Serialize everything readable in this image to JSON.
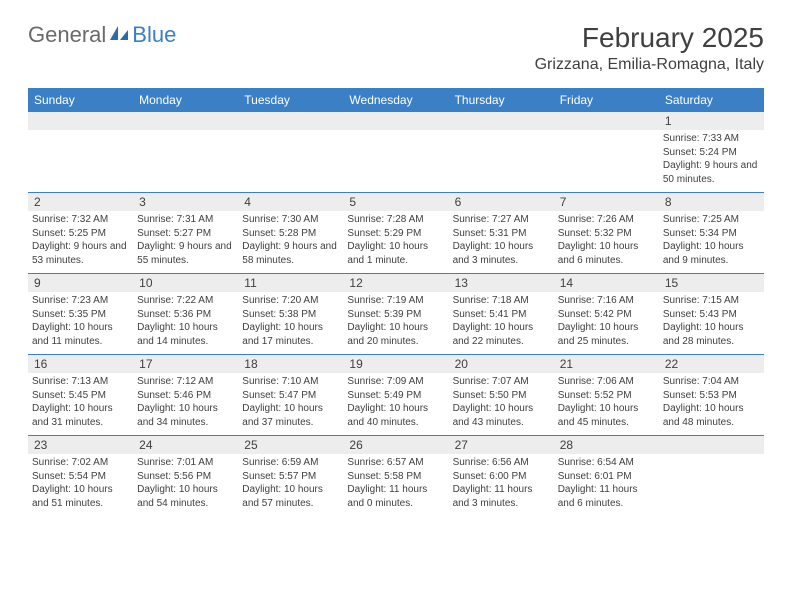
{
  "logo": {
    "text1": "General",
    "text2": "Blue"
  },
  "title": "February 2025",
  "location": "Grizzana, Emilia-Romagna, Italy",
  "colors": {
    "header_blue": "#3b7fc4",
    "gray_bar": "#ededed",
    "text": "#404040",
    "logo_gray": "#6a6a6a"
  },
  "weekdays": [
    "Sunday",
    "Monday",
    "Tuesday",
    "Wednesday",
    "Thursday",
    "Friday",
    "Saturday"
  ],
  "weeks": [
    [
      {
        "n": "",
        "sunrise": "",
        "sunset": "",
        "daylight": ""
      },
      {
        "n": "",
        "sunrise": "",
        "sunset": "",
        "daylight": ""
      },
      {
        "n": "",
        "sunrise": "",
        "sunset": "",
        "daylight": ""
      },
      {
        "n": "",
        "sunrise": "",
        "sunset": "",
        "daylight": ""
      },
      {
        "n": "",
        "sunrise": "",
        "sunset": "",
        "daylight": ""
      },
      {
        "n": "",
        "sunrise": "",
        "sunset": "",
        "daylight": ""
      },
      {
        "n": "1",
        "sunrise": "Sunrise: 7:33 AM",
        "sunset": "Sunset: 5:24 PM",
        "daylight": "Daylight: 9 hours and 50 minutes."
      }
    ],
    [
      {
        "n": "2",
        "sunrise": "Sunrise: 7:32 AM",
        "sunset": "Sunset: 5:25 PM",
        "daylight": "Daylight: 9 hours and 53 minutes."
      },
      {
        "n": "3",
        "sunrise": "Sunrise: 7:31 AM",
        "sunset": "Sunset: 5:27 PM",
        "daylight": "Daylight: 9 hours and 55 minutes."
      },
      {
        "n": "4",
        "sunrise": "Sunrise: 7:30 AM",
        "sunset": "Sunset: 5:28 PM",
        "daylight": "Daylight: 9 hours and 58 minutes."
      },
      {
        "n": "5",
        "sunrise": "Sunrise: 7:28 AM",
        "sunset": "Sunset: 5:29 PM",
        "daylight": "Daylight: 10 hours and 1 minute."
      },
      {
        "n": "6",
        "sunrise": "Sunrise: 7:27 AM",
        "sunset": "Sunset: 5:31 PM",
        "daylight": "Daylight: 10 hours and 3 minutes."
      },
      {
        "n": "7",
        "sunrise": "Sunrise: 7:26 AM",
        "sunset": "Sunset: 5:32 PM",
        "daylight": "Daylight: 10 hours and 6 minutes."
      },
      {
        "n": "8",
        "sunrise": "Sunrise: 7:25 AM",
        "sunset": "Sunset: 5:34 PM",
        "daylight": "Daylight: 10 hours and 9 minutes."
      }
    ],
    [
      {
        "n": "9",
        "sunrise": "Sunrise: 7:23 AM",
        "sunset": "Sunset: 5:35 PM",
        "daylight": "Daylight: 10 hours and 11 minutes."
      },
      {
        "n": "10",
        "sunrise": "Sunrise: 7:22 AM",
        "sunset": "Sunset: 5:36 PM",
        "daylight": "Daylight: 10 hours and 14 minutes."
      },
      {
        "n": "11",
        "sunrise": "Sunrise: 7:20 AM",
        "sunset": "Sunset: 5:38 PM",
        "daylight": "Daylight: 10 hours and 17 minutes."
      },
      {
        "n": "12",
        "sunrise": "Sunrise: 7:19 AM",
        "sunset": "Sunset: 5:39 PM",
        "daylight": "Daylight: 10 hours and 20 minutes."
      },
      {
        "n": "13",
        "sunrise": "Sunrise: 7:18 AM",
        "sunset": "Sunset: 5:41 PM",
        "daylight": "Daylight: 10 hours and 22 minutes."
      },
      {
        "n": "14",
        "sunrise": "Sunrise: 7:16 AM",
        "sunset": "Sunset: 5:42 PM",
        "daylight": "Daylight: 10 hours and 25 minutes."
      },
      {
        "n": "15",
        "sunrise": "Sunrise: 7:15 AM",
        "sunset": "Sunset: 5:43 PM",
        "daylight": "Daylight: 10 hours and 28 minutes."
      }
    ],
    [
      {
        "n": "16",
        "sunrise": "Sunrise: 7:13 AM",
        "sunset": "Sunset: 5:45 PM",
        "daylight": "Daylight: 10 hours and 31 minutes."
      },
      {
        "n": "17",
        "sunrise": "Sunrise: 7:12 AM",
        "sunset": "Sunset: 5:46 PM",
        "daylight": "Daylight: 10 hours and 34 minutes."
      },
      {
        "n": "18",
        "sunrise": "Sunrise: 7:10 AM",
        "sunset": "Sunset: 5:47 PM",
        "daylight": "Daylight: 10 hours and 37 minutes."
      },
      {
        "n": "19",
        "sunrise": "Sunrise: 7:09 AM",
        "sunset": "Sunset: 5:49 PM",
        "daylight": "Daylight: 10 hours and 40 minutes."
      },
      {
        "n": "20",
        "sunrise": "Sunrise: 7:07 AM",
        "sunset": "Sunset: 5:50 PM",
        "daylight": "Daylight: 10 hours and 43 minutes."
      },
      {
        "n": "21",
        "sunrise": "Sunrise: 7:06 AM",
        "sunset": "Sunset: 5:52 PM",
        "daylight": "Daylight: 10 hours and 45 minutes."
      },
      {
        "n": "22",
        "sunrise": "Sunrise: 7:04 AM",
        "sunset": "Sunset: 5:53 PM",
        "daylight": "Daylight: 10 hours and 48 minutes."
      }
    ],
    [
      {
        "n": "23",
        "sunrise": "Sunrise: 7:02 AM",
        "sunset": "Sunset: 5:54 PM",
        "daylight": "Daylight: 10 hours and 51 minutes."
      },
      {
        "n": "24",
        "sunrise": "Sunrise: 7:01 AM",
        "sunset": "Sunset: 5:56 PM",
        "daylight": "Daylight: 10 hours and 54 minutes."
      },
      {
        "n": "25",
        "sunrise": "Sunrise: 6:59 AM",
        "sunset": "Sunset: 5:57 PM",
        "daylight": "Daylight: 10 hours and 57 minutes."
      },
      {
        "n": "26",
        "sunrise": "Sunrise: 6:57 AM",
        "sunset": "Sunset: 5:58 PM",
        "daylight": "Daylight: 11 hours and 0 minutes."
      },
      {
        "n": "27",
        "sunrise": "Sunrise: 6:56 AM",
        "sunset": "Sunset: 6:00 PM",
        "daylight": "Daylight: 11 hours and 3 minutes."
      },
      {
        "n": "28",
        "sunrise": "Sunrise: 6:54 AM",
        "sunset": "Sunset: 6:01 PM",
        "daylight": "Daylight: 11 hours and 6 minutes."
      },
      {
        "n": "",
        "sunrise": "",
        "sunset": "",
        "daylight": ""
      }
    ]
  ]
}
